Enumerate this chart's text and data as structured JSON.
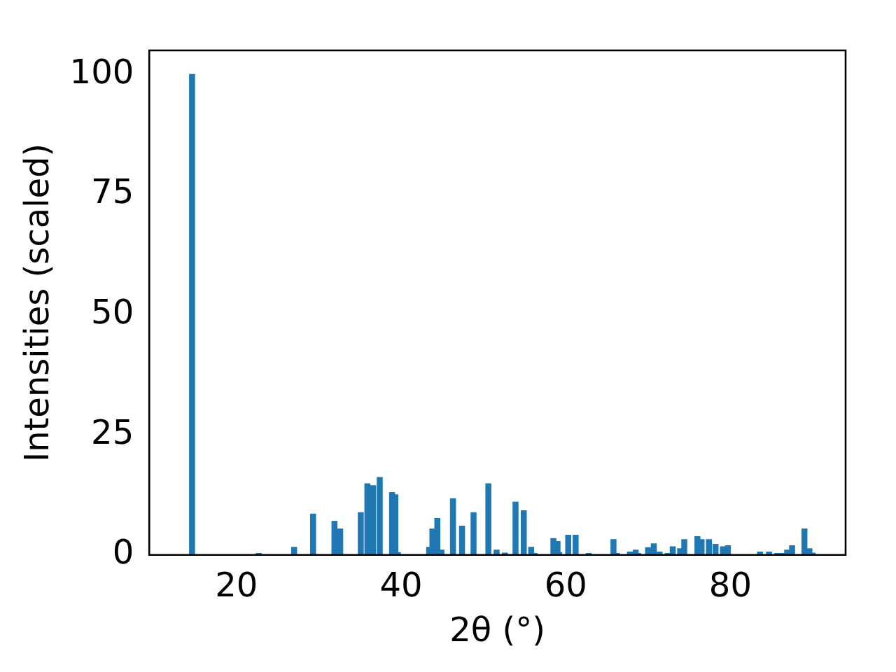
{
  "chart_data": {
    "type": "bar",
    "xlabel": "2θ (°)",
    "ylabel": "Intensities (scaled)",
    "x": [
      14.6,
      22.7,
      27.0,
      29.3,
      31.9,
      32.6,
      35.1,
      35.9,
      36.6,
      37.4,
      38.9,
      39.3,
      39.6,
      43.4,
      43.8,
      44.4,
      44.9,
      46.3,
      47.4,
      48.8,
      50.6,
      51.6,
      52.6,
      53.9,
      54.9,
      55.8,
      56.2,
      58.5,
      59.0,
      59.2,
      60.3,
      61.2,
      62.8,
      65.8,
      66.2,
      67.8,
      68.5,
      68.8,
      70.0,
      70.7,
      71.4,
      72.4,
      73.0,
      73.9,
      74.4,
      76.0,
      76.5,
      77.4,
      78.2,
      79.1,
      79.7,
      83.6,
      84.7,
      85.7,
      86.4,
      86.9,
      87.5,
      89.0,
      89.6,
      90.0
    ],
    "series": [
      {
        "color": "#1f77b4",
        "values": [
          100,
          0.3,
          1.6,
          8.5,
          7,
          5.4,
          8.8,
          14.8,
          14.4,
          16.1,
          13,
          12.5,
          0.5,
          1.6,
          5.4,
          7.6,
          1,
          11.7,
          6,
          8.8,
          14.8,
          1,
          0.4,
          11,
          9.2,
          1.6,
          0.3,
          3.4,
          2.8,
          0.5,
          4.1,
          4.1,
          0.3,
          3.2,
          0.3,
          0.6,
          1,
          0.3,
          1.5,
          2.3,
          0.6,
          0.3,
          1.7,
          1.3,
          3.2,
          3.8,
          3.2,
          3.2,
          2.2,
          1.7,
          1.9,
          0.6,
          0.6,
          0.3,
          0.3,
          1,
          1.9,
          5.4,
          1.3,
          0.4
        ]
      }
    ],
    "xlim": [
      9.4,
      94
    ],
    "ylim": [
      0,
      105
    ],
    "xticks": [
      20,
      40,
      60,
      80
    ],
    "yticks": [
      0,
      25,
      50,
      75,
      100
    ],
    "grid": false,
    "legend": false
  }
}
